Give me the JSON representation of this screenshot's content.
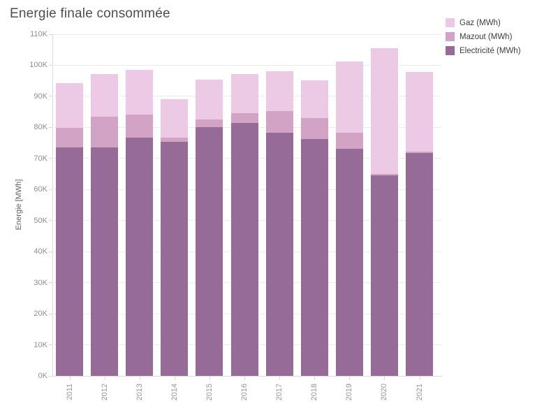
{
  "title": "Energie finale consommée",
  "legend": {
    "items": [
      {
        "label": "Gaz (MWh)",
        "color": "#ecc9e4"
      },
      {
        "label": "Mazout (MWh)",
        "color": "#d3a3c6"
      },
      {
        "label": "Electricité (MWh)",
        "color": "#976b97"
      }
    ]
  },
  "y_axis": {
    "title": "Energie [MWh]",
    "tick_labels": [
      "0K",
      "10K",
      "20K",
      "30K",
      "40K",
      "50K",
      "60K",
      "70K",
      "80K",
      "90K",
      "100K",
      "110K"
    ]
  },
  "chart_data": {
    "type": "bar",
    "stacked": true,
    "title": "Energie finale consommée",
    "categories": [
      "2011",
      "2012",
      "2013",
      "2014",
      "2015",
      "2016",
      "2017",
      "2018",
      "2019",
      "2020",
      "2021"
    ],
    "series": [
      {
        "name": "Electricité (MWh)",
        "color": "#976b97",
        "values": [
          73500,
          73500,
          76700,
          75400,
          80000,
          81400,
          78300,
          76200,
          73000,
          64500,
          71700
        ]
      },
      {
        "name": "Mazout (MWh)",
        "color": "#d3a3c6",
        "values": [
          6300,
          10000,
          7400,
          1400,
          2600,
          3100,
          7000,
          6800,
          5300,
          600,
          600
        ]
      },
      {
        "name": "Gaz (MWh)",
        "color": "#ecc9e4",
        "values": [
          14400,
          13600,
          14400,
          12300,
          12700,
          12700,
          12800,
          12100,
          23000,
          40300,
          25600
        ]
      }
    ],
    "totals": [
      94200,
      97100,
      98500,
      89100,
      95300,
      97200,
      98100,
      95100,
      101300,
      105400,
      97900
    ],
    "xlabel": "",
    "ylabel": "Energie [MWh]",
    "ylim": [
      0,
      110000
    ],
    "y_tick_step": 10000,
    "grid": true,
    "legend_position": "top-right",
    "legend_order_top_to_bottom": [
      "Gaz (MWh)",
      "Mazout (MWh)",
      "Electricité (MWh)"
    ]
  }
}
